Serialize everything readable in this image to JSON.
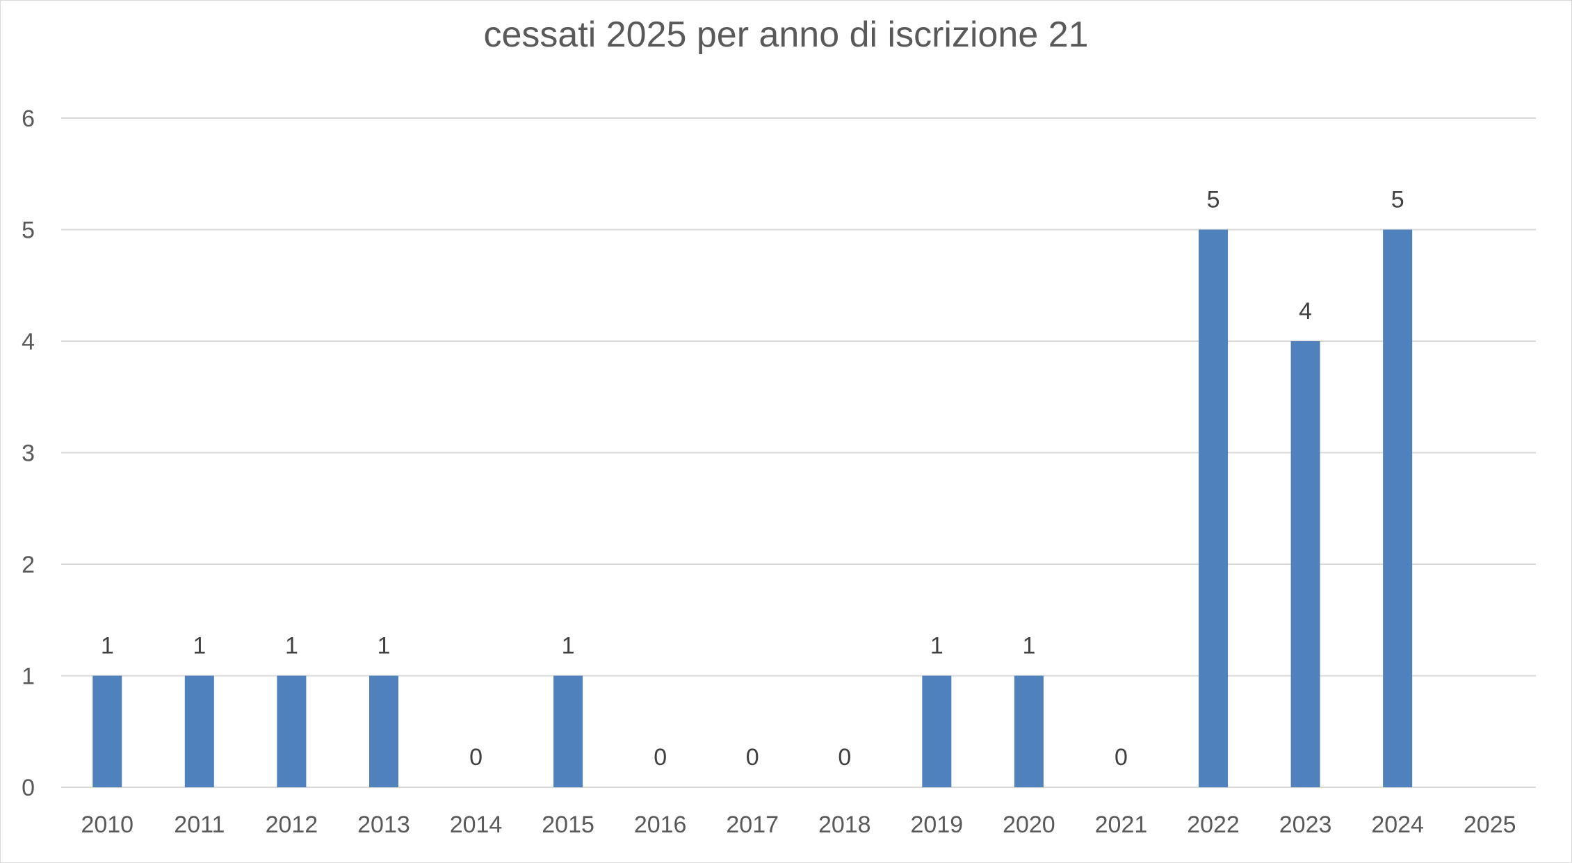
{
  "chart_data": {
    "type": "bar",
    "title": "cessati 2025 per anno di iscrizione 21",
    "xlabel": "",
    "ylabel": "",
    "categories": [
      "2010",
      "2011",
      "2012",
      "2013",
      "2014",
      "2015",
      "2016",
      "2017",
      "2018",
      "2019",
      "2020",
      "2021",
      "2022",
      "2023",
      "2024",
      "2025"
    ],
    "values": [
      1,
      1,
      1,
      1,
      0,
      1,
      0,
      0,
      0,
      1,
      1,
      0,
      5,
      4,
      5,
      null
    ],
    "data_labels": [
      "1",
      "1",
      "1",
      "1",
      "0",
      "1",
      "0",
      "0",
      "0",
      "1",
      "1",
      "0",
      "5",
      "4",
      "5",
      ""
    ],
    "ylim": [
      0,
      6
    ],
    "yticks": [
      "0",
      "1",
      "2",
      "3",
      "4",
      "5",
      "6"
    ],
    "grid": true,
    "legend": "none",
    "colors": {
      "bar": "#4f81bd",
      "grid": "#d9d9d9",
      "text": "#595959",
      "label": "#404040"
    }
  }
}
